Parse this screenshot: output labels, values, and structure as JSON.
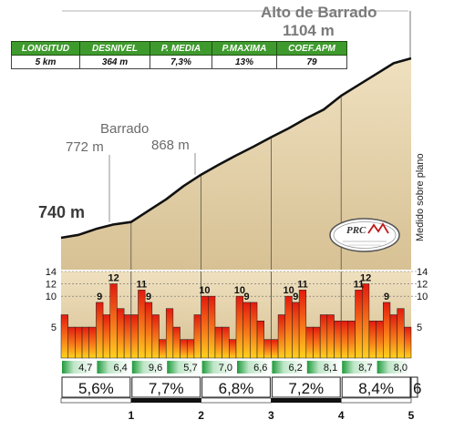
{
  "summit": {
    "name": "Alto de Barrado",
    "altitude": "1104 m"
  },
  "annotations": {
    "barrado": "Barrado",
    "alt_772": "772 m",
    "alt_868": "868 m",
    "alt_740": "740 m",
    "side_note": "Medido sobre plano"
  },
  "stats": {
    "headers": [
      "LONGITUD",
      "DESNIVEL",
      "P. MEDIA",
      "P.MAXIMA",
      "COEF.APM"
    ],
    "values": [
      "5 km",
      "364 m",
      "7,3%",
      "13%",
      "79"
    ],
    "coef_color": "#e01010"
  },
  "logo": {
    "text": "PRC"
  },
  "chart_data": {
    "type": "bar",
    "profile": {
      "x_km": [
        0,
        0.25,
        0.5,
        0.75,
        1.0,
        1.25,
        1.5,
        1.75,
        2.0,
        2.25,
        2.5,
        2.75,
        3.0,
        3.25,
        3.5,
        3.75,
        4.0,
        4.25,
        4.5,
        4.75,
        5.0
      ],
      "altitude_m": [
        740,
        746,
        758,
        767,
        772,
        795,
        818,
        845,
        868,
        888,
        907,
        925,
        944,
        962,
        982,
        1000,
        1028,
        1050,
        1072,
        1094,
        1104
      ],
      "ylim": [
        740,
        1104
      ]
    },
    "gradient_bars": {
      "segment_km": 0.1,
      "values": [
        7,
        5,
        5,
        5,
        5,
        9,
        7,
        12,
        8,
        7,
        7,
        11,
        9,
        7,
        3,
        8,
        5,
        3,
        3,
        7,
        10,
        10,
        5,
        5,
        3,
        10,
        9,
        9,
        6,
        3,
        3,
        7,
        10,
        9,
        11,
        5,
        5,
        7,
        7,
        6,
        6,
        6,
        11,
        12,
        6,
        6,
        9,
        7,
        8,
        5
      ],
      "labels": [
        {
          "index": 5,
          "text": "9"
        },
        {
          "index": 7,
          "text": "12"
        },
        {
          "index": 11,
          "text": "11"
        },
        {
          "index": 12,
          "text": "9"
        },
        {
          "index": 20,
          "text": "10"
        },
        {
          "index": 25,
          "text": "10"
        },
        {
          "index": 26,
          "text": "9"
        },
        {
          "index": 32,
          "text": "10"
        },
        {
          "index": 33,
          "text": "9"
        },
        {
          "index": 34,
          "text": "11"
        },
        {
          "index": 42,
          "text": "11"
        },
        {
          "index": 43,
          "text": "12"
        },
        {
          "index": 46,
          "text": "9"
        }
      ],
      "ylim": [
        0,
        14
      ],
      "y_ticks": [
        5,
        10,
        12,
        14
      ]
    },
    "half_km": {
      "values": [
        4.7,
        6.4,
        9.6,
        5.7,
        7.0,
        6.6,
        6.2,
        8.1,
        8.7,
        8.0
      ],
      "labels": [
        "4,7",
        "6,4",
        "9,6",
        "5,7",
        "7,0",
        "6,6",
        "6,2",
        "8,1",
        "8,7",
        "8,0"
      ]
    },
    "km": {
      "values": [
        5.6,
        7.7,
        6.8,
        7.2,
        8.4
      ],
      "labels": [
        "5,6%",
        "7,7%",
        "6,8%",
        "7,2%",
        "8,4%"
      ],
      "end_label": "6"
    },
    "x_ticks": [
      "1",
      "2",
      "3",
      "4",
      "5"
    ],
    "xlim": [
      0,
      5
    ]
  }
}
